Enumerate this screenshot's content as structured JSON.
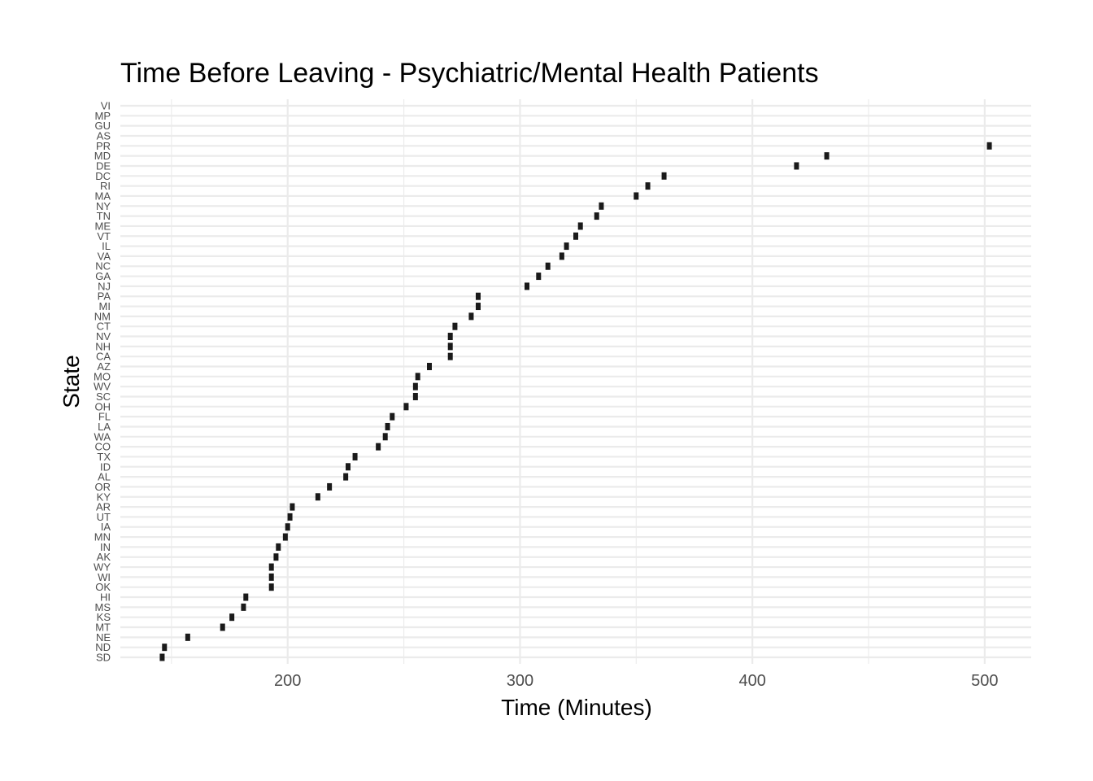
{
  "chart_data": {
    "type": "scatter",
    "title": "Time Before Leaving - Psychiatric/Mental Health Patients",
    "xlabel": "Time (Minutes)",
    "ylabel": "State",
    "xlim": [
      128,
      520
    ],
    "x_ticks": [
      200,
      300,
      400,
      500
    ],
    "x_tick_labels": [
      "200",
      "300",
      "400",
      "500"
    ],
    "x_minor_ticks": [
      150,
      250,
      350,
      450
    ],
    "grid": true,
    "legend": "none",
    "point_color": "#1a1a1a",
    "categories": [
      "SD",
      "ND",
      "NE",
      "MT",
      "KS",
      "MS",
      "HI",
      "OK",
      "WI",
      "WY",
      "AK",
      "IN",
      "MN",
      "IA",
      "UT",
      "AR",
      "KY",
      "OR",
      "AL",
      "ID",
      "TX",
      "CO",
      "WA",
      "LA",
      "FL",
      "OH",
      "SC",
      "WV",
      "MO",
      "AZ",
      "CA",
      "NH",
      "NV",
      "CT",
      "NM",
      "MI",
      "PA",
      "NJ",
      "GA",
      "NC",
      "VA",
      "IL",
      "VT",
      "ME",
      "TN",
      "NY",
      "MA",
      "RI",
      "DC",
      "DE",
      "MD",
      "PR",
      "AS",
      "GU",
      "MP",
      "VI"
    ],
    "points": [
      {
        "state": "SD",
        "x": 146
      },
      {
        "state": "ND",
        "x": 147
      },
      {
        "state": "NE",
        "x": 157
      },
      {
        "state": "MT",
        "x": 172
      },
      {
        "state": "KS",
        "x": 176
      },
      {
        "state": "MS",
        "x": 181
      },
      {
        "state": "HI",
        "x": 182
      },
      {
        "state": "OK",
        "x": 193
      },
      {
        "state": "WI",
        "x": 193
      },
      {
        "state": "WY",
        "x": 193
      },
      {
        "state": "AK",
        "x": 195
      },
      {
        "state": "IN",
        "x": 196
      },
      {
        "state": "MN",
        "x": 199
      },
      {
        "state": "IA",
        "x": 200
      },
      {
        "state": "UT",
        "x": 201
      },
      {
        "state": "AR",
        "x": 202
      },
      {
        "state": "KY",
        "x": 213
      },
      {
        "state": "OR",
        "x": 218
      },
      {
        "state": "AL",
        "x": 225
      },
      {
        "state": "ID",
        "x": 226
      },
      {
        "state": "TX",
        "x": 229
      },
      {
        "state": "CO",
        "x": 239
      },
      {
        "state": "WA",
        "x": 242
      },
      {
        "state": "LA",
        "x": 243
      },
      {
        "state": "FL",
        "x": 245
      },
      {
        "state": "OH",
        "x": 251
      },
      {
        "state": "SC",
        "x": 255
      },
      {
        "state": "WV",
        "x": 255
      },
      {
        "state": "MO",
        "x": 256
      },
      {
        "state": "AZ",
        "x": 261
      },
      {
        "state": "CA",
        "x": 270
      },
      {
        "state": "NH",
        "x": 270
      },
      {
        "state": "NV",
        "x": 270
      },
      {
        "state": "CT",
        "x": 272
      },
      {
        "state": "NM",
        "x": 279
      },
      {
        "state": "MI",
        "x": 282
      },
      {
        "state": "PA",
        "x": 282
      },
      {
        "state": "NJ",
        "x": 303
      },
      {
        "state": "GA",
        "x": 308
      },
      {
        "state": "NC",
        "x": 312
      },
      {
        "state": "VA",
        "x": 318
      },
      {
        "state": "IL",
        "x": 320
      },
      {
        "state": "VT",
        "x": 324
      },
      {
        "state": "ME",
        "x": 326
      },
      {
        "state": "TN",
        "x": 333
      },
      {
        "state": "NY",
        "x": 335
      },
      {
        "state": "MA",
        "x": 350
      },
      {
        "state": "RI",
        "x": 355
      },
      {
        "state": "DC",
        "x": 362
      },
      {
        "state": "DE",
        "x": 419
      },
      {
        "state": "MD",
        "x": 432
      },
      {
        "state": "PR",
        "x": 502
      }
    ]
  }
}
